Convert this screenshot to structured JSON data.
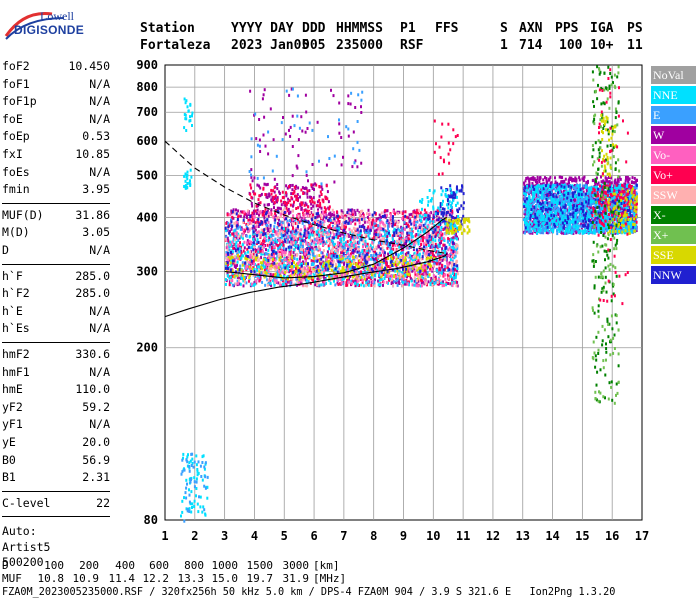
{
  "logo": {
    "line1": "Lowell",
    "line2": "DIGISONDE"
  },
  "header": {
    "cols": [
      {
        "label": "Station",
        "value": "Fortaleza"
      },
      {
        "label": "YYYY DAY",
        "value": "2023 Jan05"
      },
      {
        "label": "DDD",
        "value": "005"
      },
      {
        "label": "HHMMSS",
        "value": "235000"
      },
      {
        "label": "P1",
        "value": "RSF"
      },
      {
        "label": "FFS",
        "value": ""
      },
      {
        "label": "S",
        "value": "1"
      },
      {
        "label": "AXN",
        "value": "714"
      },
      {
        "label": "PPS",
        "value": "100"
      },
      {
        "label": "IGA",
        "value": "10+"
      },
      {
        "label": "PS",
        "value": "11"
      }
    ]
  },
  "params": {
    "group1": [
      {
        "label": "foF2",
        "value": "10.450"
      },
      {
        "label": "foF1",
        "value": "N/A"
      },
      {
        "label": "foF1p",
        "value": "N/A"
      },
      {
        "label": "foE",
        "value": "N/A"
      },
      {
        "label": "foEp",
        "value": "0.53"
      },
      {
        "label": "fxI",
        "value": "10.85"
      },
      {
        "label": "foEs",
        "value": "N/A"
      },
      {
        "label": "fmin",
        "value": "3.95"
      }
    ],
    "group2": [
      {
        "label": "MUF(D)",
        "value": "31.86"
      },
      {
        "label": "M(D)",
        "value": "3.05"
      },
      {
        "label": "D",
        "value": "N/A"
      }
    ],
    "group3": [
      {
        "label": "h`F",
        "value": "285.0"
      },
      {
        "label": "h`F2",
        "value": "285.0"
      },
      {
        "label": "h`E",
        "value": "N/A"
      },
      {
        "label": "h`Es",
        "value": "N/A"
      }
    ],
    "group4": [
      {
        "label": "hmF2",
        "value": "330.6"
      },
      {
        "label": "hmF1",
        "value": "N/A"
      },
      {
        "label": "hmE",
        "value": "110.0"
      },
      {
        "label": "yF2",
        "value": "59.2"
      },
      {
        "label": "yF1",
        "value": "N/A"
      },
      {
        "label": "yE",
        "value": "20.0"
      },
      {
        "label": "B0",
        "value": "56.9"
      },
      {
        "label": "B1",
        "value": "2.31"
      }
    ],
    "group5": [
      {
        "label": "C-level",
        "value": "22"
      }
    ],
    "auto": [
      "Auto:",
      "Artist5",
      "500200"
    ]
  },
  "legend": [
    {
      "label": "NoVal",
      "color": "#a0a0a0"
    },
    {
      "label": "NNE",
      "color": "#00e0ff"
    },
    {
      "label": "E",
      "color": "#3aa0ff"
    },
    {
      "label": "W",
      "color": "#a000a0"
    },
    {
      "label": "Vo-",
      "color": "#ff60c0"
    },
    {
      "label": "Vo+",
      "color": "#ff0050"
    },
    {
      "label": "SSW",
      "color": "#ffb0b0"
    },
    {
      "label": "X-",
      "color": "#008000"
    },
    {
      "label": "X+",
      "color": "#70c050"
    },
    {
      "label": "SSE",
      "color": "#d8d800"
    },
    {
      "label": "NNW",
      "color": "#2020d0"
    }
  ],
  "footer": {
    "d_label": "D",
    "d_values": [
      "100",
      "200",
      "400",
      "600",
      "800",
      "1000",
      "1500",
      "3000"
    ],
    "d_unit": "[km]",
    "muf_label": "MUF",
    "muf_values": [
      "10.8",
      "10.9",
      "11.4",
      "12.2",
      "13.3",
      "15.0",
      "19.7",
      "31.9"
    ],
    "muf_unit": "[MHz]",
    "line3": "FZA0M_2023005235000.RSF / 320fx256h 50 kHz 5.0 km / DPS-4 FZA0M 904 / 3.9 S 321.6 E   Ion2Png 1.3.20"
  },
  "chart_data": {
    "type": "scatter",
    "title": "",
    "xlabel": "",
    "ylabel": "",
    "xlim": [
      1,
      17
    ],
    "ylim": [
      80,
      900
    ],
    "x_ticks": [
      1,
      2,
      3,
      4,
      5,
      6,
      7,
      8,
      9,
      10,
      11,
      12,
      13,
      14,
      15,
      16,
      17
    ],
    "y_ticks": [
      80,
      200,
      300,
      400,
      500,
      600,
      700,
      800,
      900
    ],
    "y_scale": "log",
    "grid": true,
    "legend_position": "right",
    "clusters": [
      {
        "name": "NNE",
        "f": [
          1.5,
          2.4
        ],
        "h": [
          80,
          115
        ],
        "n": 60
      },
      {
        "name": "E",
        "f": [
          1.5,
          2.4
        ],
        "h": [
          80,
          115
        ],
        "n": 40
      },
      {
        "name": "NNE",
        "f": [
          1.6,
          1.9
        ],
        "h": [
          470,
          520
        ],
        "n": 20
      },
      {
        "name": "NNE",
        "f": [
          1.6,
          1.9
        ],
        "h": [
          640,
          760
        ],
        "n": 20
      },
      {
        "name": "W",
        "f": [
          3.0,
          10.8
        ],
        "h": [
          280,
          420
        ],
        "n": 1000
      },
      {
        "name": "Vo+",
        "f": [
          3.0,
          10.8
        ],
        "h": [
          280,
          420
        ],
        "n": 700
      },
      {
        "name": "E",
        "f": [
          3.0,
          10.8
        ],
        "h": [
          280,
          400
        ],
        "n": 500
      },
      {
        "name": "NNE",
        "f": [
          3.0,
          10.8
        ],
        "h": [
          280,
          380
        ],
        "n": 500
      },
      {
        "name": "SSE",
        "f": [
          3.0,
          10.0
        ],
        "h": [
          290,
          330
        ],
        "n": 250
      },
      {
        "name": "SSW",
        "f": [
          3.0,
          10.8
        ],
        "h": [
          280,
          420
        ],
        "n": 400
      },
      {
        "name": "Vo-",
        "f": [
          3.0,
          10.8
        ],
        "h": [
          280,
          420
        ],
        "n": 350
      },
      {
        "name": "NNW",
        "f": [
          3.0,
          10.8
        ],
        "h": [
          300,
          420
        ],
        "n": 250
      },
      {
        "name": "W",
        "f": [
          3.8,
          6.5
        ],
        "h": [
          420,
          480
        ],
        "n": 120
      },
      {
        "name": "Vo+",
        "f": [
          3.8,
          6.5
        ],
        "h": [
          420,
          480
        ],
        "n": 80
      },
      {
        "name": "W",
        "f": [
          3.8,
          7.6
        ],
        "h": [
          480,
          800
        ],
        "n": 70
      },
      {
        "name": "E",
        "f": [
          3.8,
          7.6
        ],
        "h": [
          480,
          800
        ],
        "n": 40
      },
      {
        "name": "W",
        "f": [
          13.0,
          16.8
        ],
        "h": [
          370,
          500
        ],
        "n": 1100
      },
      {
        "name": "E",
        "f": [
          13.0,
          16.8
        ],
        "h": [
          370,
          480
        ],
        "n": 900
      },
      {
        "name": "NNE",
        "f": [
          13.0,
          16.8
        ],
        "h": [
          370,
          480
        ],
        "n": 600
      },
      {
        "name": "NNW",
        "f": [
          13.0,
          16.8
        ],
        "h": [
          380,
          480
        ],
        "n": 200
      },
      {
        "name": "Vo+",
        "f": [
          15.3,
          16.8
        ],
        "h": [
          380,
          480
        ],
        "n": 120
      },
      {
        "name": "SSE",
        "f": [
          15.8,
          16.8
        ],
        "h": [
          370,
          470
        ],
        "n": 80
      },
      {
        "name": "X-",
        "f": [
          15.3,
          16.2
        ],
        "h": [
          150,
          900
        ],
        "n": 160
      },
      {
        "name": "X+",
        "f": [
          15.3,
          16.2
        ],
        "h": [
          150,
          900
        ],
        "n": 120
      },
      {
        "name": "SSE",
        "f": [
          15.6,
          16.1
        ],
        "h": [
          500,
          700
        ],
        "n": 40
      },
      {
        "name": "Vo+",
        "f": [
          15.5,
          16.5
        ],
        "h": [
          250,
          900
        ],
        "n": 50
      },
      {
        "name": "NNW",
        "f": [
          10.2,
          11.0
        ],
        "h": [
          380,
          480
        ],
        "n": 80
      },
      {
        "name": "SSE",
        "f": [
          10.4,
          11.2
        ],
        "h": [
          370,
          400
        ],
        "n": 60
      },
      {
        "name": "NNE",
        "f": [
          9.5,
          10.8
        ],
        "h": [
          380,
          470
        ],
        "n": 60
      },
      {
        "name": "Vo+",
        "f": [
          10.0,
          10.8
        ],
        "h": [
          500,
          700
        ],
        "n": 20
      }
    ],
    "curves": [
      {
        "name": "virtual-height trace",
        "style": "solid",
        "points": [
          [
            1.0,
            236
          ],
          [
            1.8,
            246
          ],
          [
            2.8,
            258
          ],
          [
            3.8,
            268
          ],
          [
            4.8,
            276
          ],
          [
            5.8,
            282
          ],
          [
            6.8,
            290
          ],
          [
            7.8,
            298
          ],
          [
            8.8,
            305
          ],
          [
            9.8,
            316
          ],
          [
            10.4,
            326
          ],
          [
            10.45,
            330
          ]
        ]
      },
      {
        "name": "virtual-height trace (upper)",
        "style": "solid",
        "points": [
          [
            3.0,
            300
          ],
          [
            4.0,
            295
          ],
          [
            5.0,
            290
          ],
          [
            6.0,
            292
          ],
          [
            7.0,
            298
          ],
          [
            8.0,
            312
          ],
          [
            9.0,
            340
          ],
          [
            9.8,
            370
          ],
          [
            10.3,
            395
          ],
          [
            10.45,
            400
          ]
        ]
      },
      {
        "name": "true-height profile",
        "style": "dashed",
        "points": [
          [
            1.0,
            600
          ],
          [
            2.0,
            520
          ],
          [
            3.0,
            470
          ],
          [
            4.0,
            432
          ],
          [
            5.0,
            405
          ],
          [
            6.0,
            385
          ],
          [
            7.0,
            368
          ],
          [
            8.0,
            355
          ],
          [
            9.0,
            345
          ],
          [
            9.8,
            336
          ],
          [
            10.45,
            330
          ]
        ]
      }
    ]
  }
}
